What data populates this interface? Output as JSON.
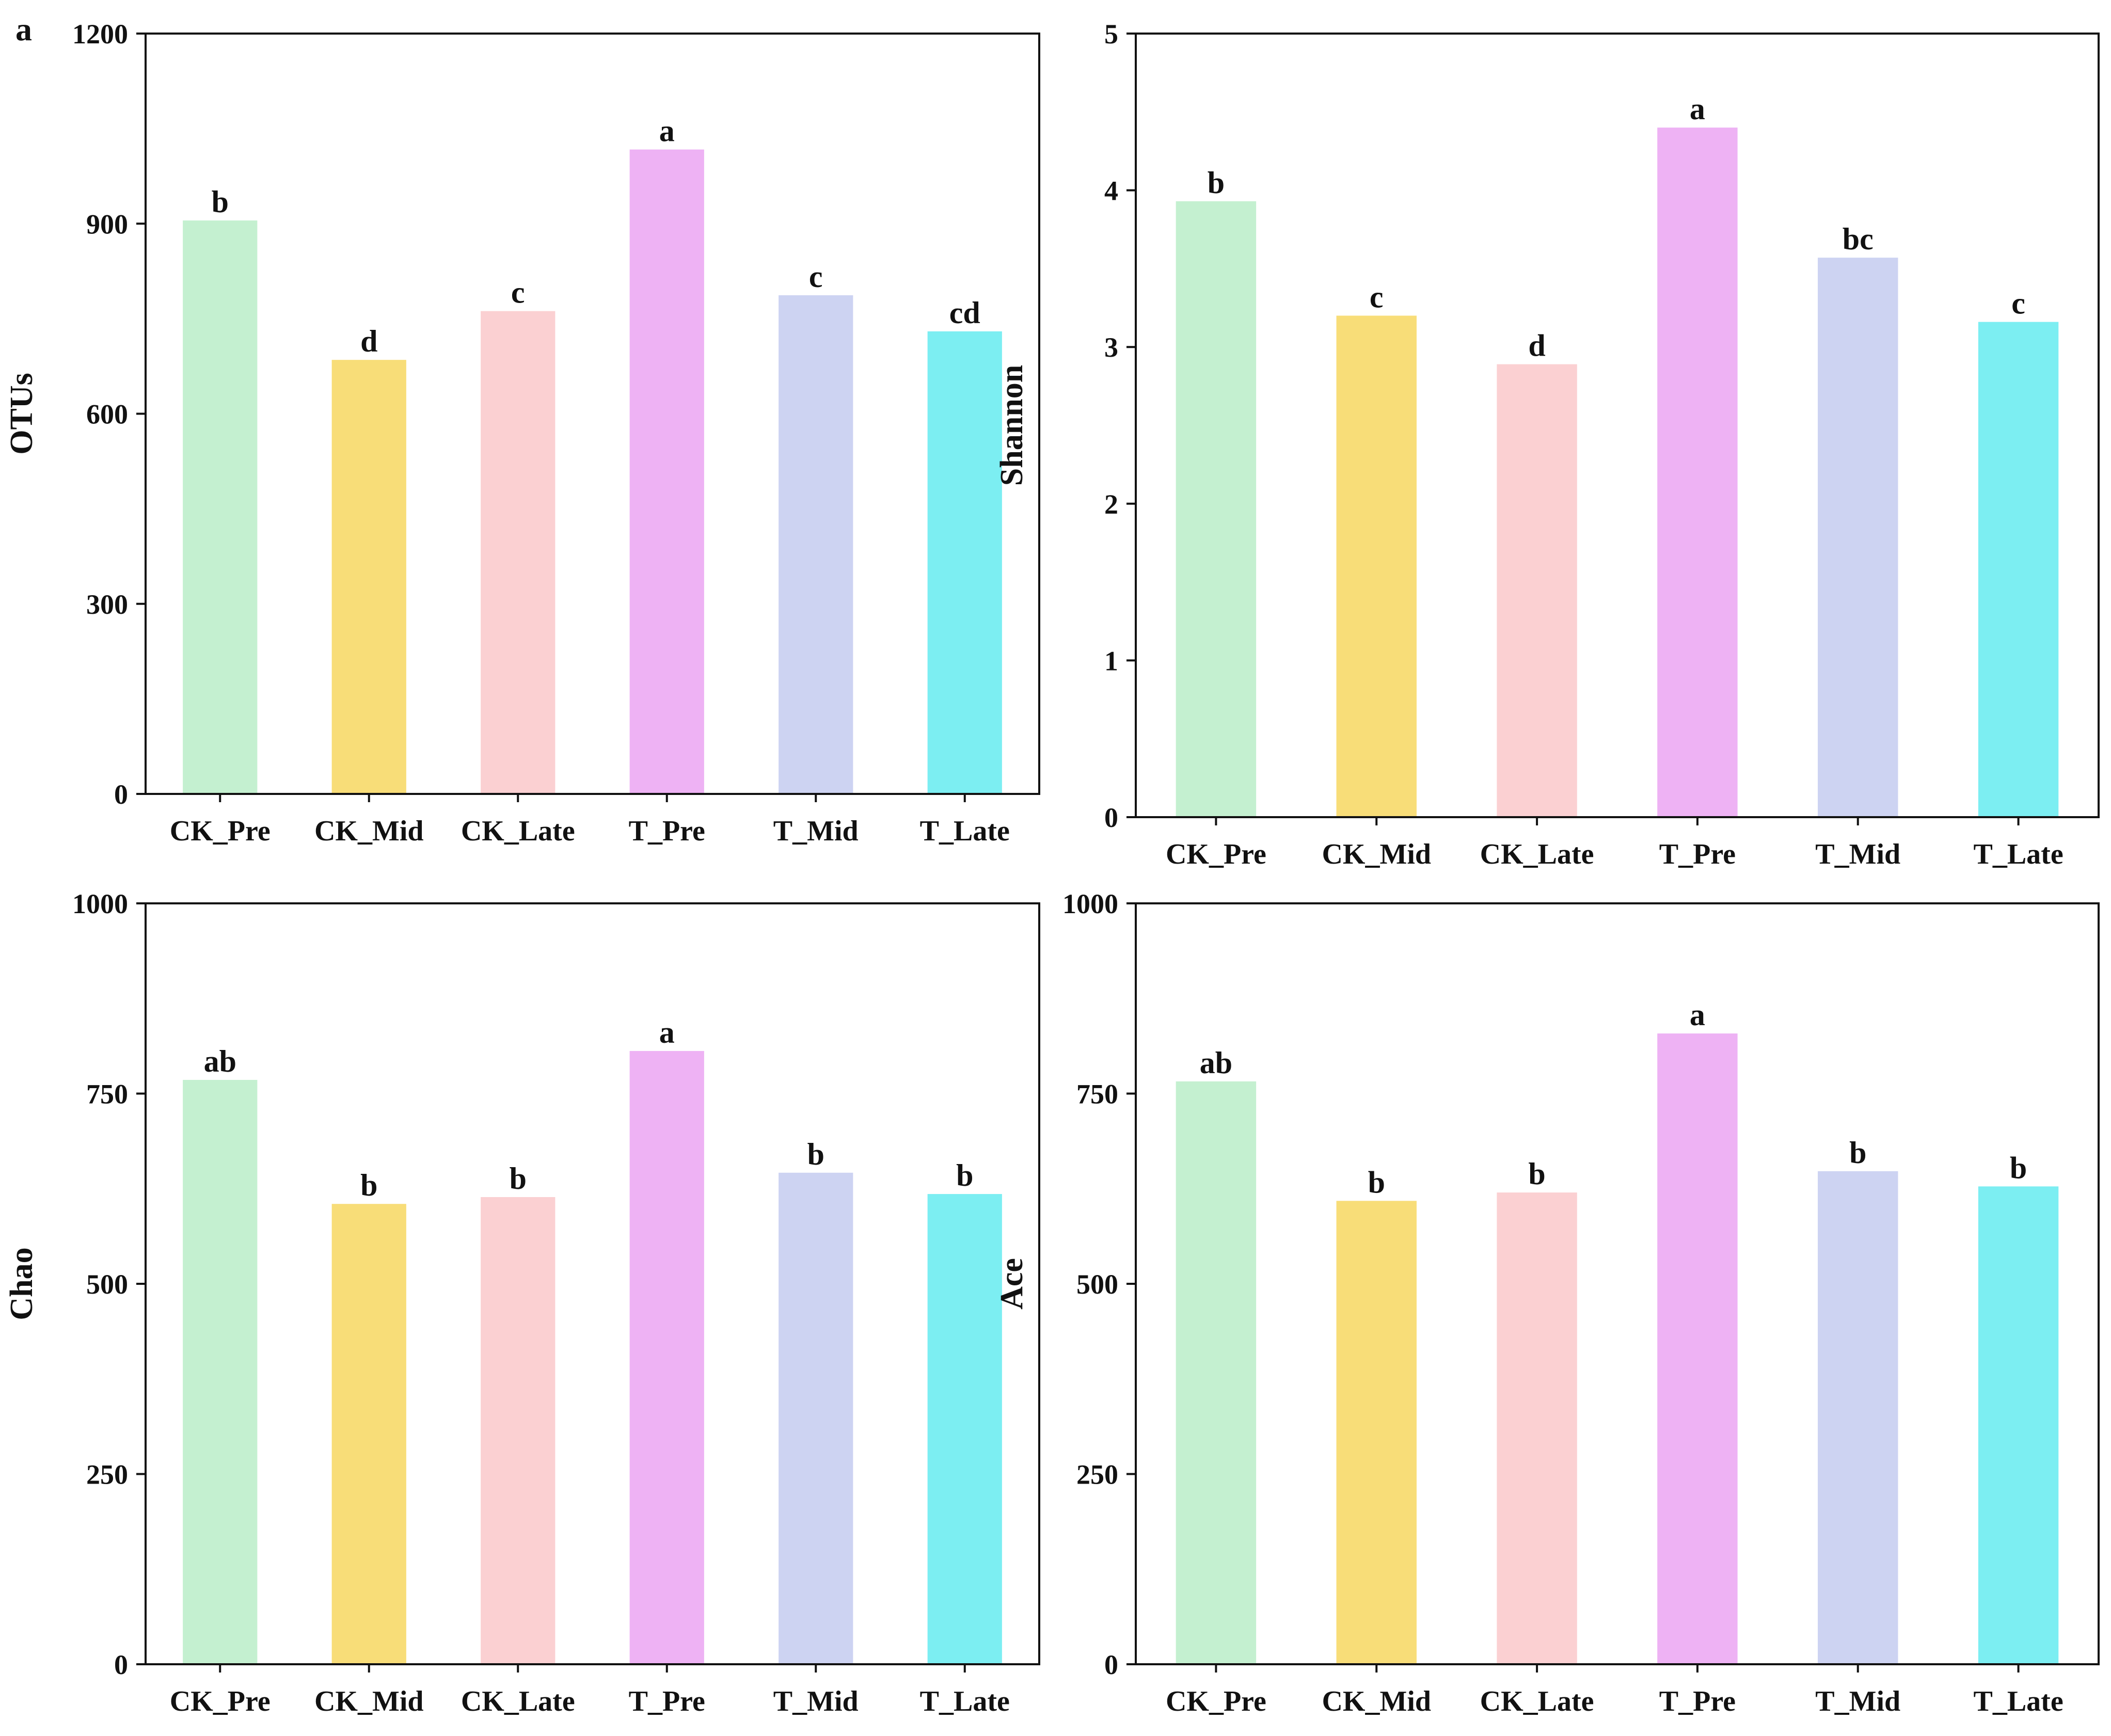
{
  "figure": {
    "panel_label": "a"
  },
  "chart_data": [
    {
      "type": "bar",
      "title": "",
      "xlabel": "",
      "ylabel": "OTUs",
      "ylim": [
        0,
        1200
      ],
      "yticks": [
        0,
        300,
        600,
        900,
        1200
      ],
      "categories": [
        "CK_Pre",
        "CK_Mid",
        "CK_Late",
        "T_Pre",
        "T_Mid",
        "T_Late"
      ],
      "values": [
        905,
        685,
        762,
        1017,
        787,
        730
      ],
      "significance_letters": [
        "b",
        "d",
        "c",
        "a",
        "c",
        "cd"
      ],
      "colors": [
        "#c4f0d0",
        "#f8dd78",
        "#fbd0d2",
        "#eeb2f4",
        "#cdd3f2",
        "#7ceef2"
      ],
      "grid": false
    },
    {
      "type": "bar",
      "title": "",
      "xlabel": "",
      "ylabel": "Shannon",
      "ylim": [
        0,
        5
      ],
      "yticks": [
        0,
        1,
        2,
        3,
        4,
        5
      ],
      "categories": [
        "CK_Pre",
        "CK_Mid",
        "CK_Late",
        "T_Pre",
        "T_Mid",
        "T_Late"
      ],
      "values": [
        3.93,
        3.2,
        2.89,
        4.4,
        3.57,
        3.16
      ],
      "significance_letters": [
        "b",
        "c",
        "d",
        "a",
        "bc",
        "c"
      ],
      "colors": [
        "#c4f0d0",
        "#f8dd78",
        "#fbd0d2",
        "#eeb2f4",
        "#cdd3f2",
        "#7ceef2"
      ],
      "grid": false
    },
    {
      "type": "bar",
      "title": "",
      "xlabel": "",
      "ylabel": "Chao",
      "ylim": [
        0,
        1000
      ],
      "yticks": [
        0,
        250,
        500,
        750,
        1000
      ],
      "categories": [
        "CK_Pre",
        "CK_Mid",
        "CK_Late",
        "T_Pre",
        "T_Mid",
        "T_Late"
      ],
      "values": [
        768,
        605,
        614,
        806,
        646,
        618
      ],
      "significance_letters": [
        "ab",
        "b",
        "b",
        "a",
        "b",
        "b"
      ],
      "colors": [
        "#c4f0d0",
        "#f8dd78",
        "#fbd0d2",
        "#eeb2f4",
        "#cdd3f2",
        "#7ceef2"
      ],
      "grid": false
    },
    {
      "type": "bar",
      "title": "",
      "xlabel": "",
      "ylabel": "Ace",
      "ylim": [
        0,
        1000
      ],
      "yticks": [
        0,
        250,
        500,
        750,
        1000
      ],
      "categories": [
        "CK_Pre",
        "CK_Mid",
        "CK_Late",
        "T_Pre",
        "T_Mid",
        "T_Late"
      ],
      "values": [
        766,
        609,
        620,
        829,
        648,
        628
      ],
      "significance_letters": [
        "ab",
        "b",
        "b",
        "a",
        "b",
        "b"
      ],
      "colors": [
        "#c4f0d0",
        "#f8dd78",
        "#fbd0d2",
        "#eeb2f4",
        "#cdd3f2",
        "#7ceef2"
      ],
      "grid": false
    }
  ]
}
